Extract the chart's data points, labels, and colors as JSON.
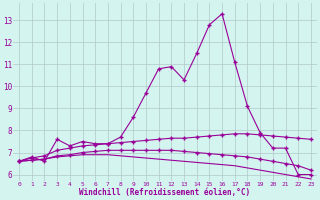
{
  "xlabel": "Windchill (Refroidissement éolien,°C)",
  "background_color": "#d4f5ef",
  "grid_color": "#b0c8c8",
  "line_color": "#990099",
  "x_ticks": [
    0,
    1,
    2,
    3,
    4,
    5,
    6,
    7,
    8,
    9,
    10,
    11,
    12,
    13,
    14,
    15,
    16,
    17,
    18,
    19,
    20,
    21,
    22,
    23
  ],
  "y_ticks": [
    6,
    7,
    8,
    9,
    10,
    11,
    12,
    13
  ],
  "ylim": [
    5.7,
    13.8
  ],
  "xlim": [
    -0.5,
    23.5
  ],
  "series1": [
    6.6,
    6.8,
    6.6,
    7.6,
    7.3,
    7.5,
    7.4,
    7.4,
    7.7,
    8.6,
    9.7,
    10.8,
    10.9,
    10.3,
    11.5,
    12.8,
    13.3,
    11.1,
    9.1,
    7.9,
    7.2,
    7.2,
    6.0,
    6.0
  ],
  "series2": [
    6.6,
    6.75,
    6.85,
    7.1,
    7.2,
    7.3,
    7.35,
    7.4,
    7.45,
    7.5,
    7.55,
    7.6,
    7.65,
    7.65,
    7.7,
    7.75,
    7.8,
    7.85,
    7.85,
    7.8,
    7.75,
    7.7,
    7.65,
    7.6
  ],
  "series3": [
    6.6,
    6.65,
    6.7,
    6.85,
    6.9,
    7.0,
    7.05,
    7.1,
    7.1,
    7.1,
    7.1,
    7.1,
    7.1,
    7.05,
    7.0,
    6.95,
    6.9,
    6.85,
    6.8,
    6.7,
    6.6,
    6.5,
    6.4,
    6.2
  ],
  "series4": [
    6.6,
    6.65,
    6.7,
    6.8,
    6.85,
    6.9,
    6.9,
    6.9,
    6.85,
    6.8,
    6.75,
    6.7,
    6.65,
    6.6,
    6.55,
    6.5,
    6.45,
    6.4,
    6.3,
    6.2,
    6.1,
    6.0,
    5.9,
    5.8
  ]
}
